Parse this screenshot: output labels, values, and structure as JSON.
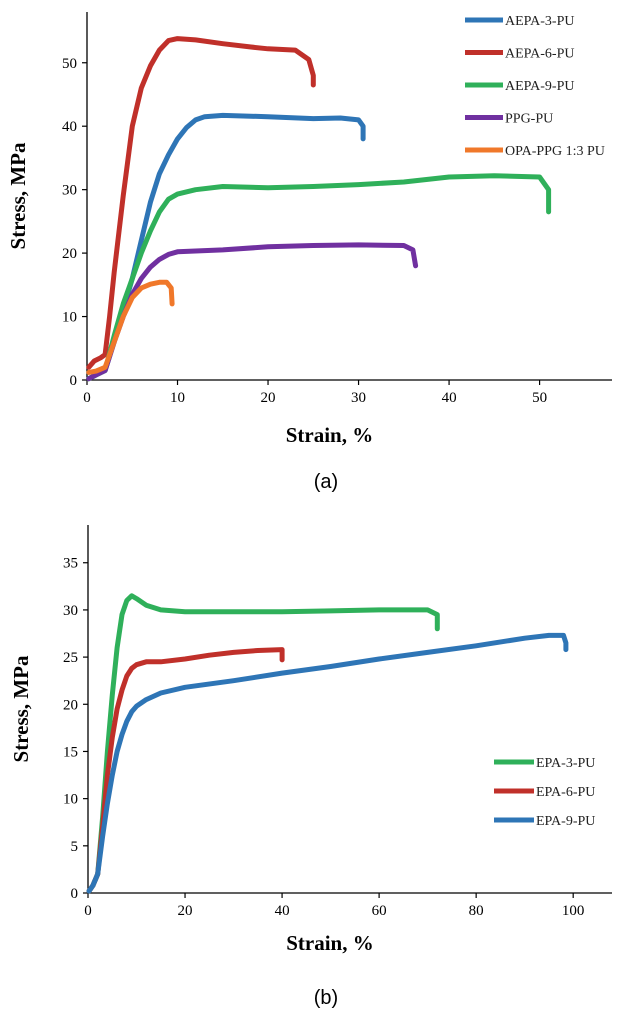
{
  "chart_data": [
    {
      "type": "line",
      "panel_label": "(a)",
      "xlabel": "Strain, %",
      "ylabel": "Stress, MPa",
      "xlim": [
        0,
        58
      ],
      "ylim": [
        0,
        58
      ],
      "xticks": [
        0,
        10,
        20,
        30,
        40,
        50
      ],
      "yticks": [
        0,
        10,
        20,
        30,
        40,
        50
      ],
      "legend_position": "top-right",
      "series": [
        {
          "name": "AEPA-3-PU",
          "color": "#2e75b6",
          "x": [
            0.2,
            1,
            2,
            3,
            4,
            5,
            6,
            7,
            8,
            9,
            10,
            11,
            12,
            13,
            15,
            20,
            25,
            28,
            30,
            30.5,
            30.5
          ],
          "y": [
            0.2,
            0.8,
            1.5,
            6,
            11,
            16,
            22,
            28,
            32.5,
            35.5,
            38,
            39.8,
            41,
            41.5,
            41.7,
            41.5,
            41.2,
            41.3,
            41,
            40,
            38
          ]
        },
        {
          "name": "AEPA-6-PU",
          "color": "#c0302a",
          "x": [
            0.2,
            0.8,
            1.5,
            2,
            2.5,
            3,
            4,
            5,
            6,
            7,
            8,
            9,
            10,
            12,
            15,
            18,
            20,
            23,
            24.5,
            25,
            25
          ],
          "y": [
            2,
            3,
            3.5,
            4,
            10,
            17,
            29,
            40,
            46,
            49.5,
            52,
            53.5,
            53.8,
            53.6,
            53,
            52.5,
            52.2,
            52,
            50.5,
            48,
            46.5
          ]
        },
        {
          "name": "AEPA-9-PU",
          "color": "#2fb05a",
          "x": [
            0.2,
            1,
            2,
            3,
            4,
            5,
            6,
            7,
            8,
            9,
            10,
            12,
            15,
            20,
            25,
            30,
            35,
            40,
            45,
            50,
            51,
            51
          ],
          "y": [
            0.2,
            0.8,
            1.5,
            7,
            12,
            16,
            20,
            23.5,
            26.5,
            28.5,
            29.3,
            30,
            30.5,
            30.3,
            30.5,
            30.8,
            31.2,
            32,
            32.2,
            32,
            30,
            26.5
          ]
        },
        {
          "name": "PPG-PU",
          "color": "#7030a0",
          "x": [
            0.2,
            1,
            2,
            3,
            4,
            5,
            6,
            7,
            8,
            9,
            10,
            15,
            20,
            25,
            30,
            35,
            36,
            36.3
          ],
          "y": [
            0.2,
            0.8,
            1.5,
            6,
            10,
            13.5,
            16,
            17.8,
            19,
            19.8,
            20.2,
            20.5,
            21,
            21.2,
            21.3,
            21.2,
            20.5,
            18
          ]
        },
        {
          "name": "OPA-PPG 1:3 PU",
          "color": "#f0782a",
          "x": [
            0.2,
            1,
            2,
            3,
            4,
            5,
            6,
            7,
            8,
            8.8,
            9.3,
            9.4
          ],
          "y": [
            1.2,
            1.4,
            2,
            6,
            10,
            13,
            14.5,
            15.1,
            15.4,
            15.4,
            14.5,
            12
          ]
        }
      ]
    },
    {
      "type": "line",
      "panel_label": "(b)",
      "xlabel": "Strain, %",
      "ylabel": "Stress, MPa",
      "xlim": [
        0,
        108
      ],
      "ylim": [
        0,
        39
      ],
      "xticks": [
        0,
        20,
        40,
        60,
        80,
        100
      ],
      "yticks": [
        0,
        5,
        10,
        15,
        20,
        25,
        30,
        35
      ],
      "legend_position": "bottom-right",
      "series": [
        {
          "name": "EPA-3-PU",
          "color": "#2fb05a",
          "x": [
            0.2,
            1,
            2,
            3,
            4,
            5,
            6,
            7,
            8,
            9,
            10,
            12,
            15,
            20,
            30,
            40,
            50,
            60,
            70,
            72,
            72
          ],
          "y": [
            0.2,
            0.8,
            2,
            8,
            15,
            21,
            26,
            29.5,
            31,
            31.5,
            31.2,
            30.5,
            30,
            29.8,
            29.8,
            29.8,
            29.9,
            30,
            30,
            29.5,
            28
          ]
        },
        {
          "name": "EPA-6-PU",
          "color": "#c0302a",
          "x": [
            0.2,
            1,
            2,
            3,
            4,
            5,
            6,
            7,
            8,
            9,
            10,
            12,
            15,
            20,
            25,
            30,
            35,
            40,
            40,
            40
          ],
          "y": [
            0.2,
            0.8,
            2,
            7,
            12.5,
            16.5,
            19.5,
            21.5,
            23,
            23.8,
            24.2,
            24.5,
            24.5,
            24.8,
            25.2,
            25.5,
            25.7,
            25.8,
            25.5,
            24.7
          ]
        },
        {
          "name": "EPA-9-PU",
          "color": "#2e75b6",
          "x": [
            0.2,
            1,
            2,
            3,
            4,
            5,
            6,
            7,
            8,
            9,
            10,
            12,
            15,
            20,
            30,
            40,
            50,
            60,
            70,
            80,
            90,
            95,
            98,
            98.5,
            98.5
          ],
          "y": [
            0.2,
            0.8,
            2,
            6,
            9.5,
            12.5,
            15,
            16.8,
            18.2,
            19.2,
            19.8,
            20.5,
            21.2,
            21.8,
            22.5,
            23.3,
            24,
            24.8,
            25.5,
            26.2,
            27,
            27.3,
            27.3,
            26.5,
            25.8
          ]
        }
      ]
    }
  ]
}
